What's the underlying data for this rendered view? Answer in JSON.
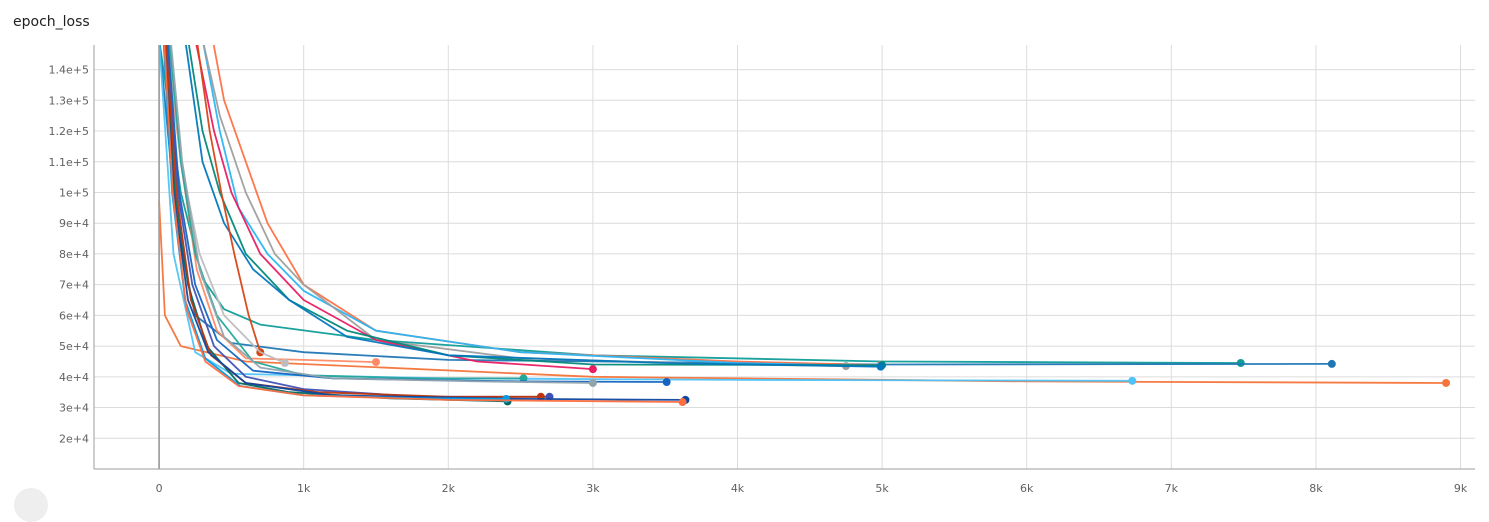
{
  "card": {
    "title": "epoch_loss"
  },
  "chart_data": {
    "type": "line",
    "title": "epoch_loss",
    "xlabel": "",
    "ylabel": "",
    "xlim": [
      -450,
      9100
    ],
    "ylim": [
      10000,
      148000
    ],
    "x_ticks": [
      {
        "value": 0,
        "label": "0"
      },
      {
        "value": 1000,
        "label": "1k"
      },
      {
        "value": 2000,
        "label": "2k"
      },
      {
        "value": 3000,
        "label": "3k"
      },
      {
        "value": 4000,
        "label": "4k"
      },
      {
        "value": 5000,
        "label": "5k"
      },
      {
        "value": 6000,
        "label": "6k"
      },
      {
        "value": 7000,
        "label": "7k"
      },
      {
        "value": 8000,
        "label": "8k"
      },
      {
        "value": 9000,
        "label": "9k"
      }
    ],
    "y_ticks": [
      {
        "value": 20000,
        "label": "2e+4"
      },
      {
        "value": 30000,
        "label": "3e+4"
      },
      {
        "value": 40000,
        "label": "4e+4"
      },
      {
        "value": 50000,
        "label": "5e+4"
      },
      {
        "value": 60000,
        "label": "6e+4"
      },
      {
        "value": 70000,
        "label": "7e+4"
      },
      {
        "value": 80000,
        "label": "8e+4"
      },
      {
        "value": 90000,
        "label": "9e+4"
      },
      {
        "value": 100000,
        "label": "1e+5"
      },
      {
        "value": 110000,
        "label": "1.1e+5"
      },
      {
        "value": 120000,
        "label": "1.2e+5"
      },
      {
        "value": 130000,
        "label": "1.3e+5"
      },
      {
        "value": 140000,
        "label": "1.4e+5"
      }
    ],
    "grid": true,
    "legend": "none",
    "series": [
      {
        "color": "#f4743b",
        "points": [
          [
            0,
            97000
          ],
          [
            40,
            60000
          ],
          [
            150,
            50000
          ],
          [
            600,
            45000
          ],
          [
            3000,
            40000
          ],
          [
            6000,
            38500
          ],
          [
            8900,
            38000
          ]
        ]
      },
      {
        "color": "#0f9d9a",
        "points": [
          [
            0,
            150000
          ],
          [
            150,
            100000
          ],
          [
            300,
            72000
          ],
          [
            450,
            62000
          ],
          [
            700,
            57000
          ],
          [
            1500,
            52000
          ],
          [
            3000,
            47000
          ],
          [
            5000,
            45000
          ],
          [
            7480,
            44500
          ]
        ]
      },
      {
        "color": "#1f77b4",
        "points": [
          [
            0,
            150000
          ],
          [
            120,
            90000
          ],
          [
            250,
            60000
          ],
          [
            500,
            51000
          ],
          [
            1000,
            48000
          ],
          [
            2000,
            45500
          ],
          [
            5000,
            44000
          ],
          [
            8110,
            44200
          ]
        ]
      },
      {
        "color": "#4fc3f7",
        "points": [
          [
            0,
            150000
          ],
          [
            100,
            80000
          ],
          [
            250,
            48000
          ],
          [
            500,
            41000
          ],
          [
            2000,
            39500
          ],
          [
            4000,
            39000
          ],
          [
            6730,
            38700
          ]
        ]
      },
      {
        "color": "#ff7043",
        "points": [
          [
            370,
            150000
          ],
          [
            450,
            130000
          ],
          [
            600,
            110000
          ],
          [
            750,
            90000
          ],
          [
            1000,
            70000
          ],
          [
            1500,
            55000
          ],
          [
            2500,
            48000
          ],
          [
            4000,
            45000
          ],
          [
            4990,
            43800
          ]
        ]
      },
      {
        "color": "#29b6f6",
        "points": [
          [
            300,
            150000
          ],
          [
            420,
            120000
          ],
          [
            550,
            95000
          ],
          [
            750,
            80000
          ],
          [
            1000,
            68000
          ],
          [
            1500,
            55000
          ],
          [
            2500,
            48000
          ],
          [
            4000,
            44500
          ],
          [
            4990,
            43500
          ]
        ]
      },
      {
        "color": "#9e9e9e",
        "points": [
          [
            300,
            150000
          ],
          [
            420,
            125000
          ],
          [
            600,
            100000
          ],
          [
            800,
            80000
          ],
          [
            1000,
            70000
          ],
          [
            1500,
            52000
          ],
          [
            2500,
            46000
          ],
          [
            4000,
            44000
          ],
          [
            4750,
            43500
          ]
        ]
      },
      {
        "color": "#e91e63",
        "points": [
          [
            250,
            150000
          ],
          [
            380,
            120000
          ],
          [
            500,
            100000
          ],
          [
            700,
            80000
          ],
          [
            1000,
            65000
          ],
          [
            1500,
            52000
          ],
          [
            2200,
            45000
          ],
          [
            3000,
            42500
          ]
        ]
      },
      {
        "color": "#00897b",
        "points": [
          [
            200,
            150000
          ],
          [
            300,
            120000
          ],
          [
            420,
            100000
          ],
          [
            600,
            80000
          ],
          [
            900,
            65000
          ],
          [
            1300,
            55000
          ],
          [
            2000,
            47000
          ],
          [
            3000,
            44000
          ],
          [
            5000,
            43800
          ]
        ]
      },
      {
        "color": "#0277bd",
        "points": [
          [
            180,
            150000
          ],
          [
            300,
            110000
          ],
          [
            450,
            90000
          ],
          [
            650,
            75000
          ],
          [
            900,
            65000
          ],
          [
            1300,
            53000
          ],
          [
            2000,
            47000
          ],
          [
            3500,
            44500
          ],
          [
            4990,
            43300
          ]
        ]
      },
      {
        "color": "#d84315",
        "points": [
          [
            260,
            150000
          ],
          [
            350,
            120000
          ],
          [
            430,
            100000
          ],
          [
            520,
            80000
          ],
          [
            620,
            60000
          ],
          [
            700,
            48000
          ]
        ]
      },
      {
        "color": "#ff8a65",
        "points": [
          [
            50,
            150000
          ],
          [
            150,
            110000
          ],
          [
            260,
            75000
          ],
          [
            400,
            55000
          ],
          [
            600,
            46000
          ],
          [
            1000,
            45500
          ],
          [
            1500,
            44800
          ]
        ]
      },
      {
        "color": "#bdbdbd",
        "points": [
          [
            60,
            150000
          ],
          [
            150,
            110000
          ],
          [
            280,
            80000
          ],
          [
            450,
            60000
          ],
          [
            700,
            48000
          ],
          [
            870,
            44500
          ]
        ]
      },
      {
        "color": "#26a69a",
        "points": [
          [
            70,
            150000
          ],
          [
            150,
            110000
          ],
          [
            250,
            80000
          ],
          [
            400,
            60000
          ],
          [
            650,
            45000
          ],
          [
            1000,
            40500
          ],
          [
            1800,
            39500
          ],
          [
            2520,
            39500
          ]
        ]
      },
      {
        "color": "#1565c0",
        "points": [
          [
            60,
            150000
          ],
          [
            140,
            100000
          ],
          [
            250,
            70000
          ],
          [
            400,
            52000
          ],
          [
            650,
            42000
          ],
          [
            1200,
            39500
          ],
          [
            2500,
            38500
          ],
          [
            3510,
            38300
          ]
        ]
      },
      {
        "color": "#90a4ae",
        "points": [
          [
            80,
            150000
          ],
          [
            160,
            110000
          ],
          [
            280,
            75000
          ],
          [
            450,
            53000
          ],
          [
            700,
            43000
          ],
          [
            1200,
            39500
          ],
          [
            2200,
            38500
          ],
          [
            3000,
            38000
          ]
        ]
      },
      {
        "color": "#3f51b5",
        "points": [
          [
            50,
            150000
          ],
          [
            130,
            100000
          ],
          [
            230,
            70000
          ],
          [
            380,
            50000
          ],
          [
            600,
            40000
          ],
          [
            1000,
            36000
          ],
          [
            1800,
            33500
          ],
          [
            2700,
            33500
          ]
        ]
      },
      {
        "color": "#00695c",
        "points": [
          [
            40,
            150000
          ],
          [
            110,
            100000
          ],
          [
            200,
            70000
          ],
          [
            330,
            50000
          ],
          [
            550,
            38000
          ],
          [
            900,
            35000
          ],
          [
            1600,
            33000
          ],
          [
            2410,
            32000
          ]
        ]
      },
      {
        "color": "#bf360c",
        "points": [
          [
            45,
            150000
          ],
          [
            120,
            100000
          ],
          [
            220,
            65000
          ],
          [
            360,
            47000
          ],
          [
            600,
            38000
          ],
          [
            1100,
            35000
          ],
          [
            2000,
            33500
          ],
          [
            2640,
            33500
          ]
        ]
      },
      {
        "color": "#0d47a1",
        "points": [
          [
            35,
            150000
          ],
          [
            100,
            100000
          ],
          [
            200,
            65000
          ],
          [
            340,
            48000
          ],
          [
            600,
            38000
          ],
          [
            1200,
            34000
          ],
          [
            2500,
            32800
          ],
          [
            3640,
            32500
          ]
        ]
      },
      {
        "color": "#039be5",
        "points": [
          [
            30,
            150000
          ],
          [
            90,
            100000
          ],
          [
            180,
            65000
          ],
          [
            320,
            46000
          ],
          [
            560,
            37000
          ],
          [
            1000,
            34000
          ],
          [
            1800,
            33000
          ],
          [
            2400,
            32800
          ]
        ]
      },
      {
        "color": "#ff6e40",
        "points": [
          [
            35,
            150000
          ],
          [
            95,
            100000
          ],
          [
            190,
            62000
          ],
          [
            320,
            45000
          ],
          [
            550,
            37000
          ],
          [
            1000,
            34000
          ],
          [
            2000,
            32500
          ],
          [
            3620,
            31800
          ]
        ]
      },
      {
        "color": "#9e9e9e",
        "points": [
          [
            0,
            5000
          ],
          [
            0,
            150000
          ]
        ]
      }
    ]
  }
}
